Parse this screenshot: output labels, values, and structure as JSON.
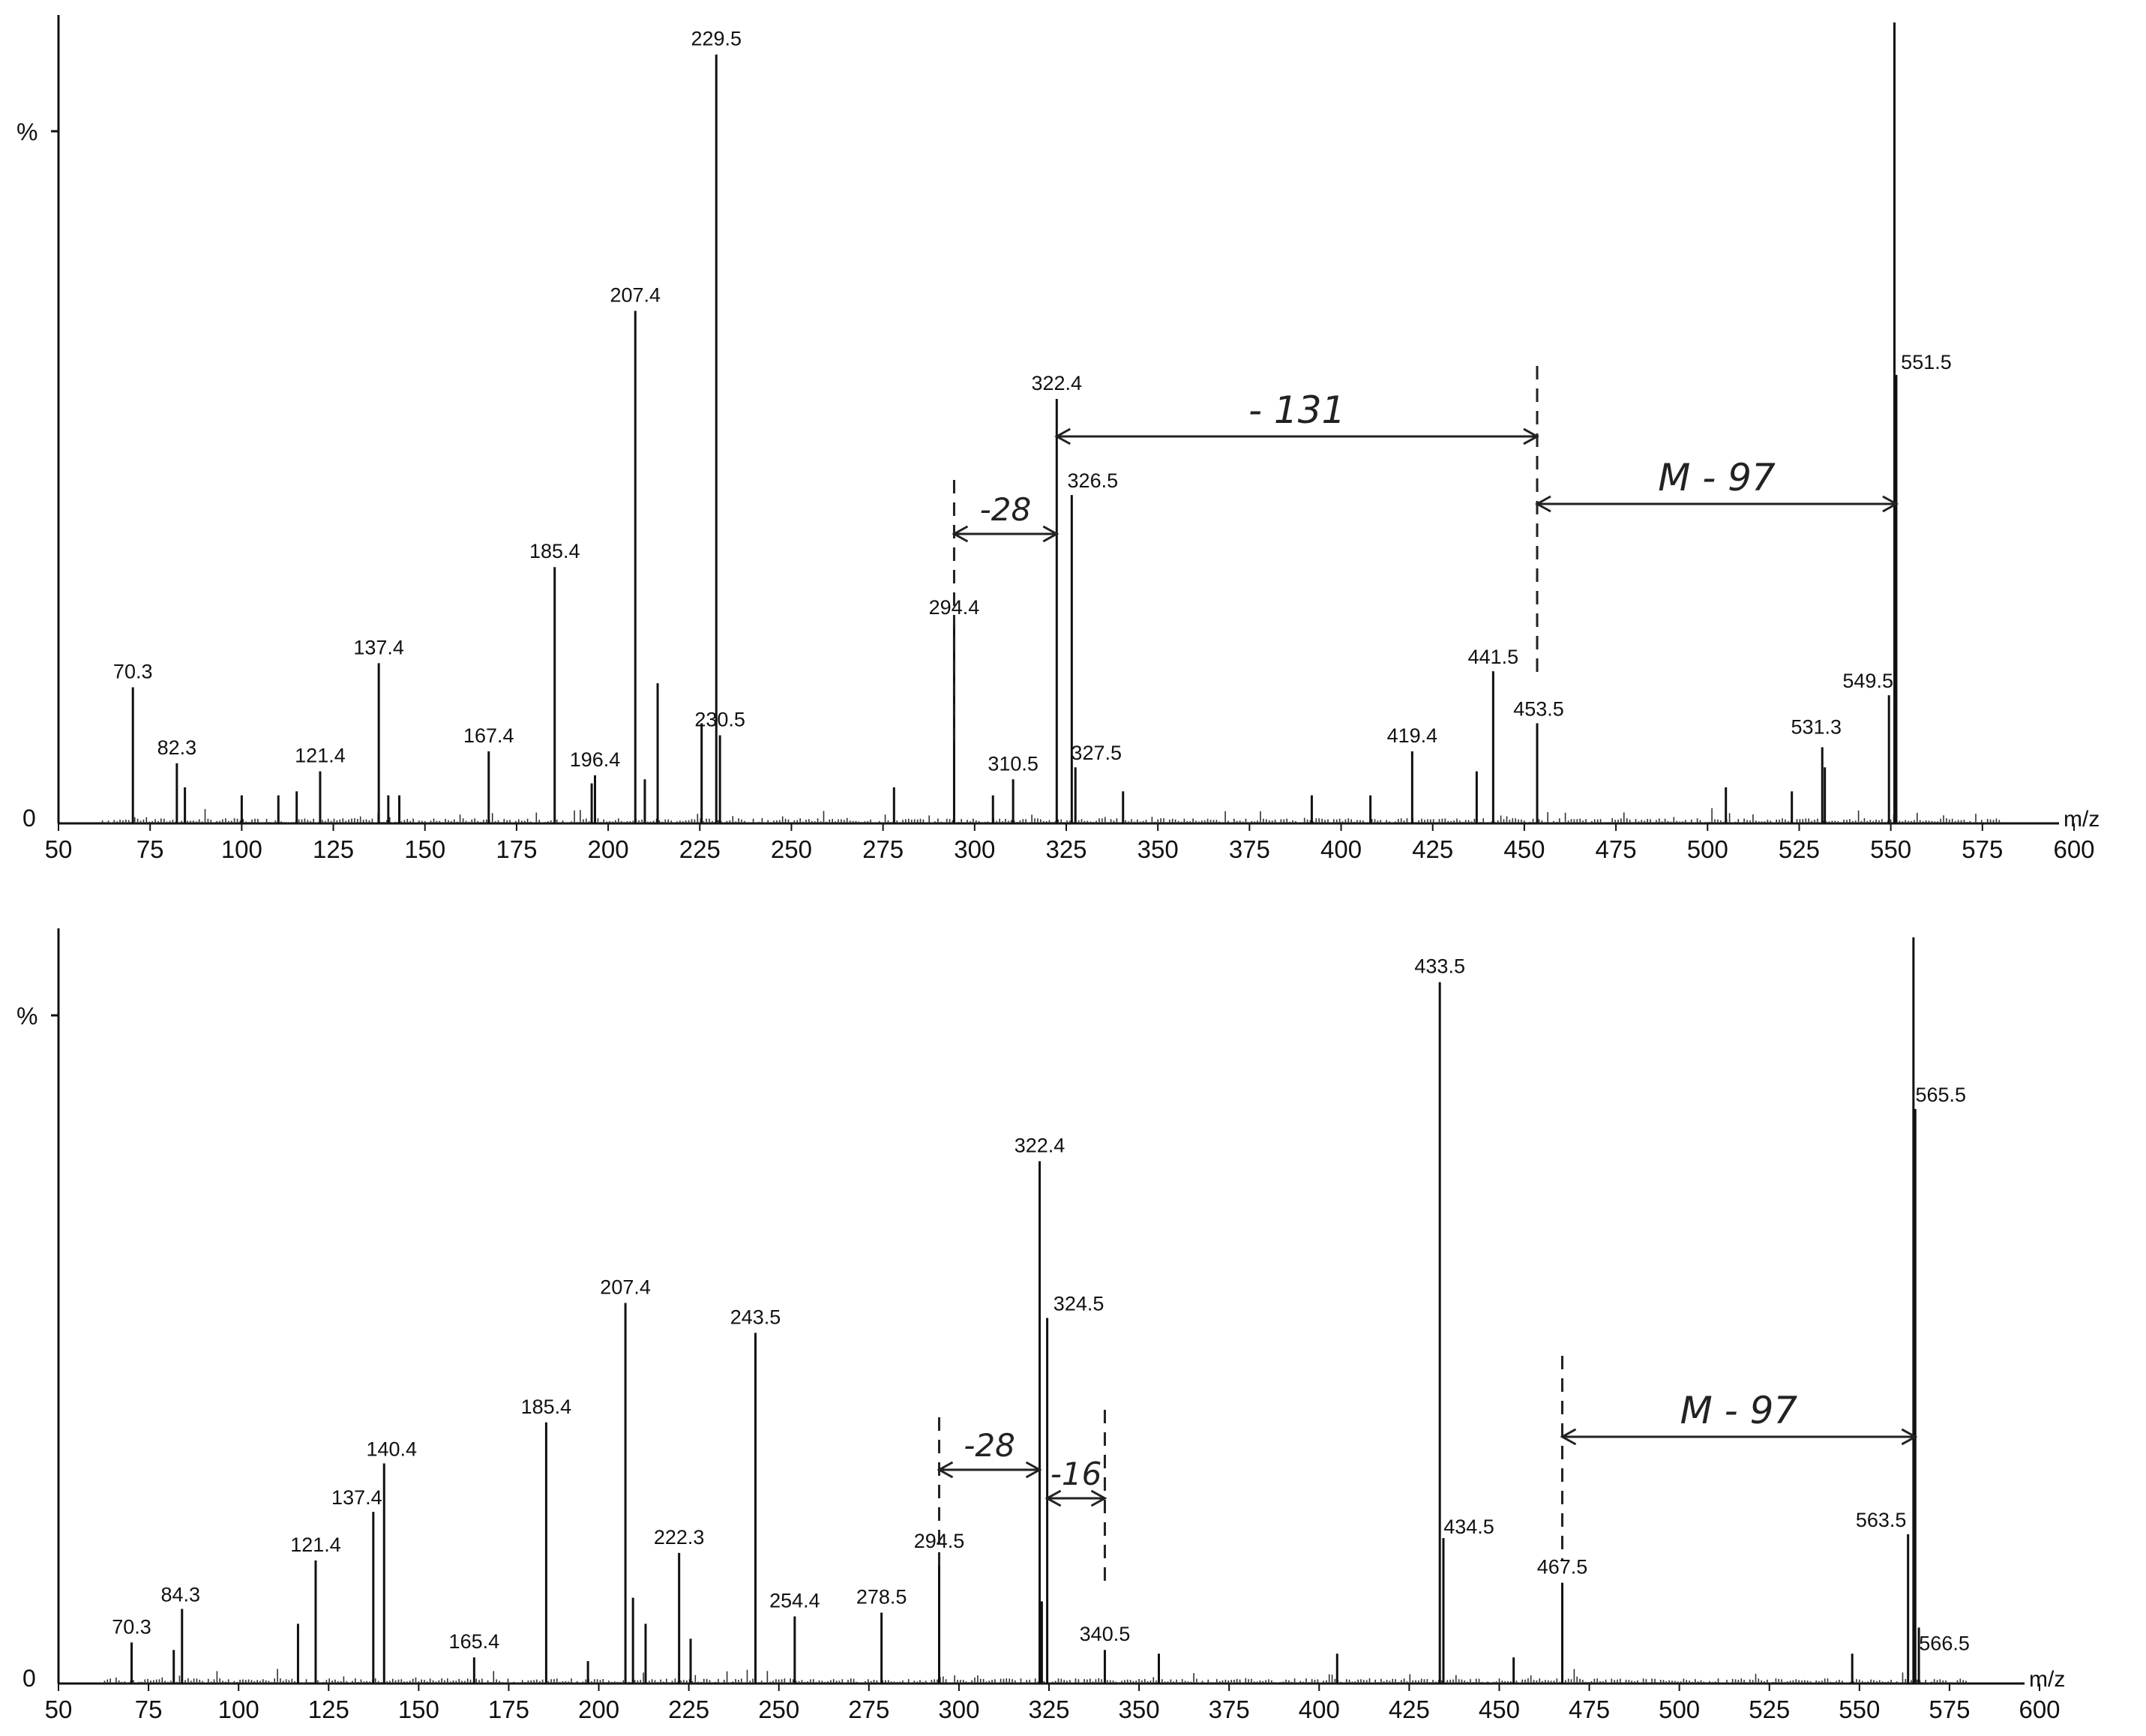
{
  "chart_data": [
    {
      "type": "bar",
      "title": "",
      "ylabel": "%",
      "xlabel": "m/z",
      "xlim": [
        50,
        600
      ],
      "xticks": [
        50,
        75,
        100,
        125,
        150,
        175,
        200,
        225,
        250,
        275,
        300,
        325,
        350,
        375,
        400,
        425,
        450,
        475,
        500,
        525,
        550,
        575,
        600
      ],
      "ylim": [
        0,
        100
      ],
      "y_ticks": [
        "0"
      ],
      "grid": false,
      "labeled_peaks": [
        {
          "mz": 70.3,
          "intensity": 17,
          "label": "70.3"
        },
        {
          "mz": 82.3,
          "intensity": 7.5,
          "label": "82.3"
        },
        {
          "mz": 121.4,
          "intensity": 6.5,
          "label": "121.4"
        },
        {
          "mz": 137.4,
          "intensity": 20,
          "label": "137.4"
        },
        {
          "mz": 167.4,
          "intensity": 9,
          "label": "167.4"
        },
        {
          "mz": 185.4,
          "intensity": 32,
          "label": "185.4"
        },
        {
          "mz": 196.4,
          "intensity": 6,
          "label": "196.4"
        },
        {
          "mz": 207.4,
          "intensity": 64,
          "label": "207.4"
        },
        {
          "mz": 229.5,
          "intensity": 96,
          "label": "229.5"
        },
        {
          "mz": 230.5,
          "intensity": 11,
          "label": "230.5"
        },
        {
          "mz": 294.4,
          "intensity": 25,
          "label": "294.4"
        },
        {
          "mz": 310.5,
          "intensity": 5.5,
          "label": "310.5"
        },
        {
          "mz": 322.4,
          "intensity": 53,
          "label": "322.4"
        },
        {
          "mz": 326.5,
          "intensity": 41,
          "label": "326.5"
        },
        {
          "mz": 327.5,
          "intensity": 7,
          "label": "327.5"
        },
        {
          "mz": 419.4,
          "intensity": 9,
          "label": "419.4"
        },
        {
          "mz": 441.5,
          "intensity": 19,
          "label": "441.5"
        },
        {
          "mz": 453.5,
          "intensity": 12.5,
          "label": "453.5"
        },
        {
          "mz": 531.3,
          "intensity": 9.5,
          "label": "531.3"
        },
        {
          "mz": 549.5,
          "intensity": 16,
          "label": "549.5"
        },
        {
          "mz": 551.5,
          "intensity": 56,
          "label": "551.5"
        }
      ],
      "unlabeled_peaks": [
        {
          "mz": 551.0,
          "intensity": 100
        },
        {
          "mz": 84.5,
          "intensity": 4.5
        },
        {
          "mz": 100.0,
          "intensity": 3.5
        },
        {
          "mz": 110.0,
          "intensity": 3.5
        },
        {
          "mz": 115.0,
          "intensity": 4
        },
        {
          "mz": 140.0,
          "intensity": 3.5
        },
        {
          "mz": 143.0,
          "intensity": 3.5
        },
        {
          "mz": 195.5,
          "intensity": 5
        },
        {
          "mz": 210.0,
          "intensity": 5.5
        },
        {
          "mz": 213.5,
          "intensity": 17.5
        },
        {
          "mz": 225.5,
          "intensity": 12.5
        },
        {
          "mz": 278.0,
          "intensity": 4.5
        },
        {
          "mz": 305.0,
          "intensity": 3.5
        },
        {
          "mz": 340.5,
          "intensity": 4
        },
        {
          "mz": 392.0,
          "intensity": 3.5
        },
        {
          "mz": 408.0,
          "intensity": 3.5
        },
        {
          "mz": 437.0,
          "intensity": 6.5
        },
        {
          "mz": 505.0,
          "intensity": 4.5
        },
        {
          "mz": 523.0,
          "intensity": 4
        },
        {
          "mz": 532.0,
          "intensity": 7
        }
      ],
      "annotations": [
        {
          "text": "-28",
          "from_mz": 294.4,
          "to_mz": 322.4
        },
        {
          "text": "- 131",
          "from_mz": 322.4,
          "to_mz": 453.5
        },
        {
          "text": "M - 97",
          "from_mz": 453.5,
          "to_mz": 551.5
        }
      ]
    },
    {
      "type": "bar",
      "title": "",
      "ylabel": "%",
      "xlabel": "m/z",
      "xlim": [
        50,
        600
      ],
      "xticks": [
        50,
        75,
        100,
        125,
        150,
        175,
        200,
        225,
        250,
        275,
        300,
        325,
        350,
        375,
        400,
        425,
        450,
        475,
        500,
        525,
        550,
        575,
        600
      ],
      "ylim": [
        0,
        100
      ],
      "y_ticks": [
        "0"
      ],
      "grid": false,
      "labeled_peaks": [
        {
          "mz": 70.3,
          "intensity": 5.5,
          "label": "70.3"
        },
        {
          "mz": 84.3,
          "intensity": 10,
          "label": "84.3"
        },
        {
          "mz": 121.4,
          "intensity": 16.5,
          "label": "121.4"
        },
        {
          "mz": 137.4,
          "intensity": 23,
          "label": "137.4"
        },
        {
          "mz": 140.4,
          "intensity": 29.5,
          "label": "140.4"
        },
        {
          "mz": 165.4,
          "intensity": 3.5,
          "label": "165.4"
        },
        {
          "mz": 185.4,
          "intensity": 35,
          "label": "185.4"
        },
        {
          "mz": 207.4,
          "intensity": 51,
          "label": "207.4"
        },
        {
          "mz": 222.3,
          "intensity": 17.5,
          "label": "222.3"
        },
        {
          "mz": 243.5,
          "intensity": 47,
          "label": "243.5"
        },
        {
          "mz": 254.4,
          "intensity": 9,
          "label": "254.4"
        },
        {
          "mz": 278.5,
          "intensity": 9.5,
          "label": "278.5"
        },
        {
          "mz": 294.5,
          "intensity": 17,
          "label": "294.5"
        },
        {
          "mz": 322.4,
          "intensity": 70,
          "label": "322.4"
        },
        {
          "mz": 324.5,
          "intensity": 49,
          "label": "324.5"
        },
        {
          "mz": 340.5,
          "intensity": 4.5,
          "label": "340.5"
        },
        {
          "mz": 433.5,
          "intensity": 94,
          "label": "433.5"
        },
        {
          "mz": 434.5,
          "intensity": 19.5,
          "label": "434.5"
        },
        {
          "mz": 467.5,
          "intensity": 13.5,
          "label": "467.5"
        },
        {
          "mz": 563.5,
          "intensity": 20,
          "label": "563.5"
        },
        {
          "mz": 565.5,
          "intensity": 77,
          "label": "565.5"
        },
        {
          "mz": 566.5,
          "intensity": 7.5,
          "label": "566.5"
        }
      ],
      "unlabeled_peaks": [
        {
          "mz": 565.0,
          "intensity": 100
        },
        {
          "mz": 82.0,
          "intensity": 4.5
        },
        {
          "mz": 116.5,
          "intensity": 8
        },
        {
          "mz": 197.0,
          "intensity": 3
        },
        {
          "mz": 209.5,
          "intensity": 11.5
        },
        {
          "mz": 213.0,
          "intensity": 8
        },
        {
          "mz": 225.5,
          "intensity": 6
        },
        {
          "mz": 323.0,
          "intensity": 11
        },
        {
          "mz": 355.5,
          "intensity": 4
        },
        {
          "mz": 405.0,
          "intensity": 4
        },
        {
          "mz": 454.0,
          "intensity": 3.5
        },
        {
          "mz": 548.0,
          "intensity": 4
        }
      ],
      "annotations": [
        {
          "text": "-28",
          "from_mz": 294.5,
          "to_mz": 322.4
        },
        {
          "text": "-16",
          "from_mz": 324.5,
          "to_mz": 340.5
        },
        {
          "text": "M - 97",
          "from_mz": 467.5,
          "to_mz": 565.5
        }
      ]
    }
  ]
}
